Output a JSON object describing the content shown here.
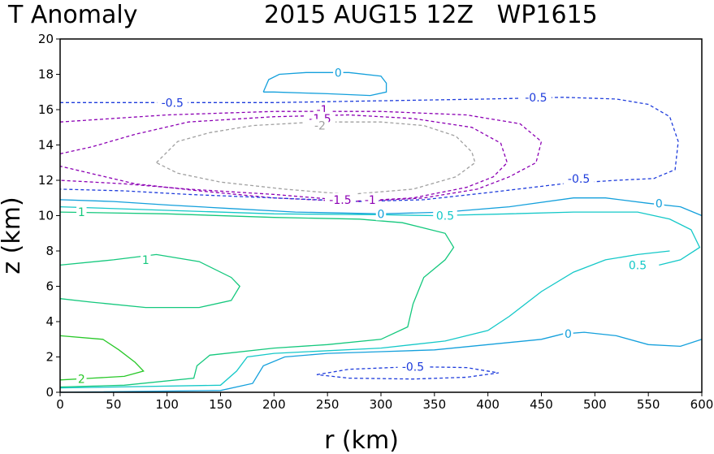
{
  "chart_data": {
    "type": "line",
    "title_left": "T Anomaly",
    "title_right": "2015 AUG15 12Z   WP1615",
    "xlabel": "r (km)",
    "ylabel": "z (km)",
    "xlim": [
      0,
      600
    ],
    "ylim": [
      0,
      20
    ],
    "xticks": [
      0,
      50,
      100,
      150,
      200,
      250,
      300,
      350,
      400,
      450,
      500,
      550,
      600
    ],
    "yticks": [
      0,
      2,
      4,
      6,
      8,
      10,
      12,
      14,
      16,
      18,
      20
    ],
    "grid": false,
    "colors": {
      "level_-2": "#a0a0a0",
      "level_-1.5": "#8c00b4",
      "level_-1": "#8c00b4",
      "level_-0.5": "#1e3cdc",
      "level_0": "#14a0dc",
      "level_0.5": "#14c8c8",
      "level_1": "#14c87d",
      "level_2": "#28c828"
    },
    "series": [
      {
        "level": -2,
        "label": "-2",
        "dashed": true,
        "closed": true,
        "points": [
          [
            90,
            13
          ],
          [
            100,
            13.6
          ],
          [
            110,
            14.2
          ],
          [
            140,
            14.7
          ],
          [
            180,
            15.1
          ],
          [
            240,
            15.3
          ],
          [
            300,
            15.3
          ],
          [
            340,
            15.1
          ],
          [
            370,
            14.5
          ],
          [
            385,
            13.6
          ],
          [
            388,
            13
          ],
          [
            370,
            12.2
          ],
          [
            330,
            11.5
          ],
          [
            270,
            11.2
          ],
          [
            210,
            11.5
          ],
          [
            150,
            11.9
          ],
          [
            110,
            12.4
          ],
          [
            90,
            13
          ]
        ]
      },
      {
        "level": -1.5,
        "label": "-1.5",
        "dashed": true,
        "closed": false,
        "points": [
          [
            0,
            13.5
          ],
          [
            30,
            13.9
          ],
          [
            70,
            14.6
          ],
          [
            120,
            15.3
          ],
          [
            200,
            15.6
          ],
          [
            270,
            15.7
          ],
          [
            330,
            15.5
          ],
          [
            385,
            15
          ],
          [
            412,
            14.1
          ],
          [
            418,
            13
          ],
          [
            405,
            12.2
          ],
          [
            380,
            11.6
          ],
          [
            330,
            11
          ],
          [
            270,
            10.8
          ],
          [
            200,
            11
          ],
          [
            130,
            11.4
          ],
          [
            70,
            11.8
          ],
          [
            0,
            12.8
          ]
        ]
      },
      {
        "level": -1,
        "label": "-1",
        "dashed": true,
        "closed": false,
        "points": [
          [
            0,
            15.3
          ],
          [
            100,
            15.7
          ],
          [
            200,
            15.9
          ],
          [
            300,
            15.9
          ],
          [
            380,
            15.7
          ],
          [
            430,
            15.2
          ],
          [
            450,
            14.2
          ],
          [
            445,
            13
          ],
          [
            420,
            12.2
          ],
          [
            390,
            11.5
          ],
          [
            340,
            11
          ],
          [
            280,
            10.8
          ],
          [
            200,
            11.2
          ],
          [
            120,
            11.5
          ],
          [
            60,
            11.8
          ],
          [
            0,
            12
          ]
        ]
      },
      {
        "level": -0.5,
        "label": "-0.5",
        "dashed": true,
        "closed": false,
        "points": [
          [
            0,
            16.4
          ],
          [
            100,
            16.4
          ],
          [
            200,
            16.4
          ],
          [
            300,
            16.5
          ],
          [
            400,
            16.6
          ],
          [
            470,
            16.7
          ],
          [
            520,
            16.6
          ],
          [
            550,
            16.3
          ],
          [
            570,
            15.6
          ],
          [
            578,
            14.2
          ],
          [
            575,
            12.6
          ],
          [
            555,
            12.1
          ],
          [
            520,
            12
          ],
          [
            470,
            11.8
          ],
          [
            400,
            11.3
          ],
          [
            340,
            10.9
          ],
          [
            280,
            10.8
          ],
          [
            200,
            11
          ],
          [
            120,
            11.2
          ],
          [
            60,
            11.4
          ],
          [
            0,
            11.5
          ]
        ]
      },
      {
        "level": -0.5,
        "label": "-0.5",
        "dashed": true,
        "closed": true,
        "points": [
          [
            240,
            1
          ],
          [
            270,
            1.3
          ],
          [
            330,
            1.45
          ],
          [
            380,
            1.4
          ],
          [
            410,
            1.1
          ],
          [
            380,
            0.85
          ],
          [
            330,
            0.75
          ],
          [
            270,
            0.8
          ],
          [
            240,
            1
          ]
        ]
      },
      {
        "level": 0,
        "label": "0",
        "dashed": false,
        "closed": false,
        "points": [
          [
            190,
            17
          ],
          [
            195,
            17.7
          ],
          [
            205,
            18
          ],
          [
            230,
            18.1
          ],
          [
            270,
            18.1
          ],
          [
            300,
            17.9
          ],
          [
            305,
            17.5
          ],
          [
            305,
            17.0
          ],
          [
            290,
            16.8
          ],
          [
            250,
            16.9
          ],
          [
            200,
            17
          ],
          [
            190,
            17
          ]
        ]
      },
      {
        "level": 0,
        "label": "0",
        "dashed": false,
        "closed": false,
        "points": [
          [
            0,
            10.9
          ],
          [
            50,
            10.8
          ],
          [
            100,
            10.6
          ],
          [
            160,
            10.4
          ],
          [
            220,
            10.2
          ],
          [
            300,
            10.1
          ],
          [
            360,
            10.2
          ],
          [
            420,
            10.5
          ],
          [
            480,
            11.0
          ],
          [
            510,
            11.0
          ],
          [
            550,
            10.7
          ],
          [
            580,
            10.5
          ],
          [
            600,
            10
          ]
        ]
      },
      {
        "level": 0,
        "label": "0",
        "dashed": false,
        "closed": false,
        "points": [
          [
            0,
            0
          ],
          [
            150,
            0.1
          ],
          [
            180,
            0.5
          ],
          [
            190,
            1.5
          ],
          [
            210,
            2
          ],
          [
            250,
            2.2
          ],
          [
            300,
            2.3
          ],
          [
            350,
            2.4
          ],
          [
            400,
            2.7
          ],
          [
            450,
            3.0
          ],
          [
            470,
            3.3
          ],
          [
            490,
            3.4
          ],
          [
            520,
            3.2
          ],
          [
            550,
            2.7
          ],
          [
            580,
            2.6
          ],
          [
            600,
            3.0
          ]
        ]
      },
      {
        "level": 0.5,
        "label": "0.5",
        "dashed": false,
        "closed": false,
        "points": [
          [
            0,
            10.5
          ],
          [
            100,
            10.3
          ],
          [
            200,
            10.1
          ],
          [
            300,
            10.05
          ],
          [
            350,
            10
          ],
          [
            420,
            10.1
          ],
          [
            480,
            10.2
          ],
          [
            540,
            10.2
          ],
          [
            570,
            9.8
          ],
          [
            590,
            9.2
          ],
          [
            598,
            8.2
          ],
          [
            580,
            7.5
          ],
          [
            560,
            7.2
          ]
        ]
      },
      {
        "level": 0.5,
        "label": "0.5",
        "dashed": false,
        "closed": false,
        "points": [
          [
            0,
            0.25
          ],
          [
            150,
            0.4
          ],
          [
            165,
            1.2
          ],
          [
            175,
            2
          ],
          [
            200,
            2.2
          ],
          [
            300,
            2.5
          ],
          [
            360,
            2.9
          ],
          [
            400,
            3.5
          ],
          [
            420,
            4.3
          ],
          [
            450,
            5.7
          ],
          [
            480,
            6.8
          ],
          [
            510,
            7.5
          ],
          [
            540,
            7.8
          ],
          [
            570,
            8
          ]
        ]
      },
      {
        "level": 1,
        "label": "1",
        "dashed": false,
        "closed": false,
        "points": [
          [
            0,
            10.2
          ],
          [
            100,
            10.1
          ],
          [
            200,
            9.9
          ],
          [
            280,
            9.8
          ],
          [
            320,
            9.6
          ],
          [
            360,
            9.0
          ],
          [
            368,
            8.2
          ],
          [
            360,
            7.5
          ],
          [
            340,
            6.5
          ],
          [
            330,
            5
          ],
          [
            325,
            3.7
          ],
          [
            300,
            3
          ],
          [
            250,
            2.7
          ],
          [
            200,
            2.5
          ],
          [
            140,
            2.1
          ],
          [
            128,
            1.5
          ],
          [
            125,
            0.8
          ],
          [
            60,
            0.4
          ],
          [
            0,
            0.3
          ]
        ]
      },
      {
        "level": 1,
        "label": "1",
        "dashed": false,
        "closed": false,
        "points": [
          [
            0,
            7.2
          ],
          [
            50,
            7.5
          ],
          [
            90,
            7.8
          ],
          [
            130,
            7.4
          ],
          [
            160,
            6.5
          ],
          [
            168,
            6
          ],
          [
            160,
            5.2
          ],
          [
            130,
            4.8
          ],
          [
            80,
            4.8
          ],
          [
            30,
            5.1
          ],
          [
            0,
            5.3
          ]
        ]
      },
      {
        "level": 2,
        "label": "2",
        "dashed": false,
        "closed": false,
        "points": [
          [
            0,
            3.2
          ],
          [
            40,
            3.0
          ],
          [
            55,
            2.4
          ],
          [
            70,
            1.7
          ],
          [
            78,
            1.2
          ],
          [
            60,
            0.9
          ],
          [
            30,
            0.8
          ],
          [
            0,
            0.7
          ]
        ]
      }
    ],
    "labels": [
      {
        "text": "0",
        "x": 260,
        "y": 18.1,
        "level": 0
      },
      {
        "text": "-0.5",
        "x": 105,
        "y": 16.4,
        "level": -0.5
      },
      {
        "text": "-0.5",
        "x": 445,
        "y": 16.7,
        "level": -0.5
      },
      {
        "text": "-1",
        "x": 245,
        "y": 16.0,
        "level": -1
      },
      {
        "text": "-1.5",
        "x": 243,
        "y": 15.5,
        "level": -1.5
      },
      {
        "text": "-2",
        "x": 243,
        "y": 15.1,
        "level": -2
      },
      {
        "text": "-0.5",
        "x": 485,
        "y": 12.1,
        "level": -0.5
      },
      {
        "text": "-1.5",
        "x": 262,
        "y": 10.9,
        "level": -1.5
      },
      {
        "text": "-1",
        "x": 290,
        "y": 10.9,
        "level": -1
      },
      {
        "text": "0",
        "x": 300,
        "y": 10.1,
        "level": 0
      },
      {
        "text": "0.5",
        "x": 360,
        "y": 10.0,
        "level": 0.5
      },
      {
        "text": "0",
        "x": 560,
        "y": 10.7,
        "level": 0
      },
      {
        "text": "1",
        "x": 20,
        "y": 10.2,
        "level": 1
      },
      {
        "text": "0.5",
        "x": 540,
        "y": 7.2,
        "level": 0.5
      },
      {
        "text": "1",
        "x": 80,
        "y": 7.5,
        "level": 1
      },
      {
        "text": "0",
        "x": 475,
        "y": 3.3,
        "level": 0
      },
      {
        "text": "-0.5",
        "x": 330,
        "y": 1.45,
        "level": -0.5
      },
      {
        "text": "2",
        "x": 20,
        "y": 0.75,
        "level": 2
      }
    ]
  }
}
